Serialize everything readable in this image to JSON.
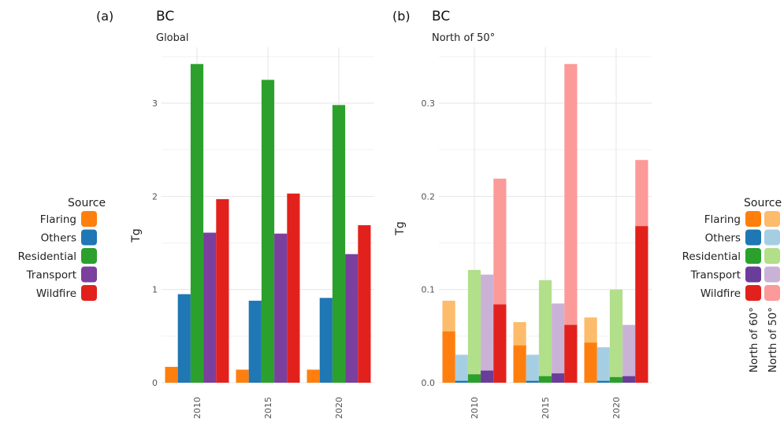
{
  "chart_data": [
    {
      "type": "bar",
      "panel_tag": "(a)",
      "title": "BC",
      "subtitle": "Global",
      "xlabel": "",
      "ylabel": "Tg",
      "ylim": [
        0,
        3.6
      ],
      "yticks": [
        "0",
        "1",
        "2",
        "3"
      ],
      "ytick_values": [
        0,
        1,
        2,
        3
      ],
      "categories": [
        "2010",
        "2015",
        "2020"
      ],
      "grid": true,
      "series": [
        {
          "name": "Flaring",
          "color": "#ff7f0e",
          "values": [
            0.17,
            0.14,
            0.14
          ]
        },
        {
          "name": "Others",
          "color": "#1f77b4",
          "values": [
            0.95,
            0.88,
            0.91
          ]
        },
        {
          "name": "Residential",
          "color": "#2ca02c",
          "values": [
            3.42,
            3.25,
            2.98
          ]
        },
        {
          "name": "Transport",
          "color": "#7b3f9e",
          "values": [
            1.61,
            1.6,
            1.38
          ]
        },
        {
          "name": "Wildfire",
          "color": "#e3211c",
          "values": [
            1.97,
            2.03,
            1.69
          ]
        }
      ]
    },
    {
      "type": "bar",
      "stacked": true,
      "panel_tag": "(b)",
      "title": "BC",
      "subtitle": "North of 50°",
      "xlabel": "",
      "ylabel": "Tg",
      "ylim": [
        0,
        0.36
      ],
      "yticks": [
        "0.0",
        "0.1",
        "0.2",
        "0.3"
      ],
      "ytick_values": [
        0.0,
        0.1,
        0.2,
        0.3
      ],
      "categories": [
        "2010",
        "2015",
        "2020"
      ],
      "grid": true,
      "series": [
        {
          "name": "Flaring",
          "color_60": "#ff7f0e",
          "color_50": "#fdbb6c",
          "north_of_60": [
            0.055,
            0.04,
            0.043
          ],
          "north_of_50": [
            0.088,
            0.065,
            0.07
          ]
        },
        {
          "name": "Others",
          "color_60": "#1f77b4",
          "color_50": "#a6cee3",
          "north_of_60": [
            0.002,
            0.002,
            0.002
          ],
          "north_of_50": [
            0.03,
            0.03,
            0.038
          ]
        },
        {
          "name": "Residential",
          "color_60": "#2ca02c",
          "color_50": "#b2df8a",
          "north_of_60": [
            0.009,
            0.007,
            0.006
          ],
          "north_of_50": [
            0.121,
            0.11,
            0.1
          ]
        },
        {
          "name": "Transport",
          "color_60": "#6a3d9a",
          "color_50": "#cab2d6",
          "north_of_60": [
            0.013,
            0.01,
            0.007
          ],
          "north_of_50": [
            0.116,
            0.085,
            0.062
          ]
        },
        {
          "name": "Wildfire",
          "color_60": "#e3211c",
          "color_50": "#fb9a99",
          "north_of_60": [
            0.084,
            0.062,
            0.168
          ],
          "north_of_50": [
            0.219,
            0.342,
            0.239
          ]
        }
      ]
    }
  ],
  "legend_left": {
    "title": "Source",
    "placement": "left",
    "items": [
      {
        "label": "Flaring",
        "color": "#ff7f0e"
      },
      {
        "label": "Others",
        "color": "#1f77b4"
      },
      {
        "label": "Residential",
        "color": "#2ca02c"
      },
      {
        "label": "Transport",
        "color": "#7b3f9e"
      },
      {
        "label": "Wildfire",
        "color": "#e3211c"
      }
    ]
  },
  "legend_right": {
    "title": "Source",
    "placement": "right",
    "column_labels": [
      "North of 60°",
      "North of 50°"
    ],
    "items": [
      {
        "label": "Flaring",
        "color_60": "#ff7f0e",
        "color_50": "#fdbb6c"
      },
      {
        "label": "Others",
        "color_60": "#1f77b4",
        "color_50": "#a6cee3"
      },
      {
        "label": "Residential",
        "color_60": "#2ca02c",
        "color_50": "#b2df8a"
      },
      {
        "label": "Transport",
        "color_60": "#6a3d9a",
        "color_50": "#cab2d6"
      },
      {
        "label": "Wildfire",
        "color_60": "#e3211c",
        "color_50": "#fb9a99"
      }
    ]
  }
}
